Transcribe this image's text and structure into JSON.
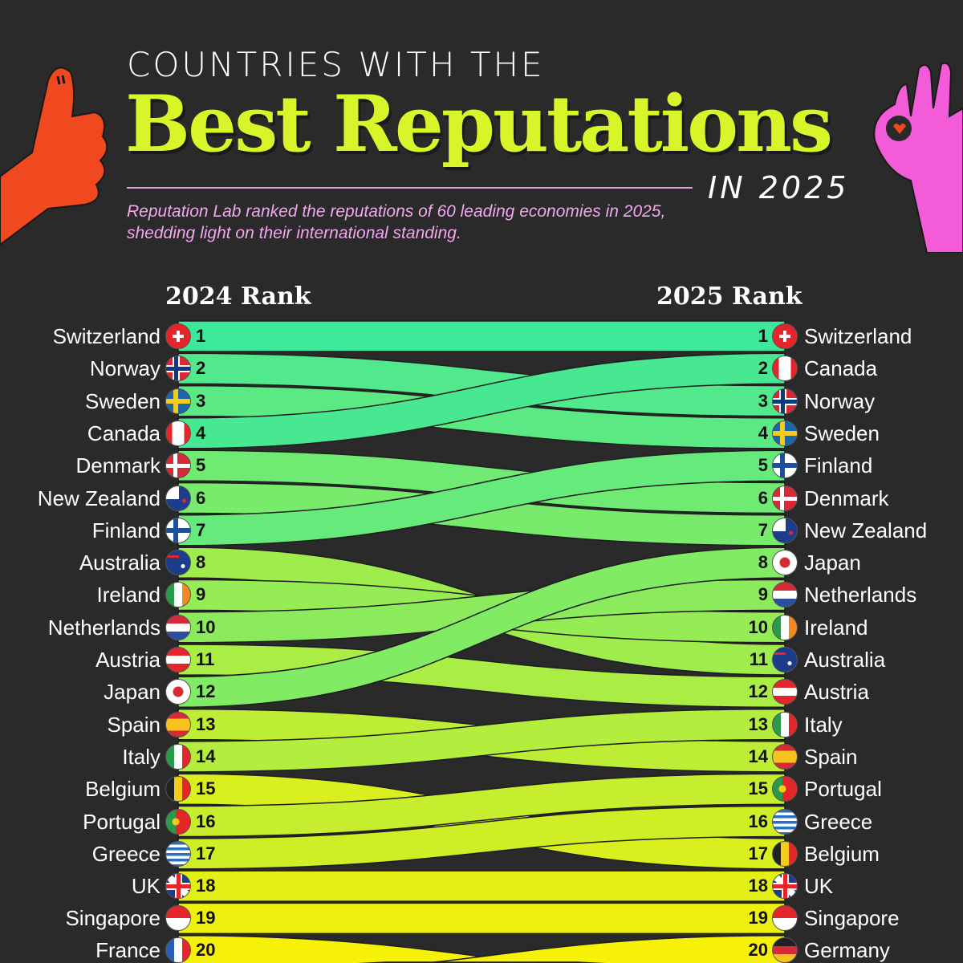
{
  "header": {
    "title_top": "COUNTRIES WITH THE",
    "title_main": "Best Reputations",
    "title_year": "IN 2025",
    "subtitle": "Reputation Lab ranked the reputations of 60 leading economies in 2025, shedding light on their international standing."
  },
  "chart_data": {
    "type": "bump",
    "left_label": "2024 Rank",
    "right_label": "2025 Rank",
    "rank_2024": [
      "Switzerland",
      "Norway",
      "Sweden",
      "Canada",
      "Denmark",
      "New Zealand",
      "Finland",
      "Australia",
      "Ireland",
      "Netherlands",
      "Austria",
      "Japan",
      "Spain",
      "Italy",
      "Belgium",
      "Portugal",
      "Greece",
      "UK",
      "Singapore",
      "France"
    ],
    "rank_2025": [
      "Switzerland",
      "Canada",
      "Norway",
      "Sweden",
      "Finland",
      "Denmark",
      "New Zealand",
      "Japan",
      "Netherlands",
      "Ireland",
      "Australia",
      "Austria",
      "Italy",
      "Spain",
      "Portugal",
      "Greece",
      "Belgium",
      "UK",
      "Singapore",
      "Germany"
    ],
    "color_scale": [
      "#3ee89a",
      "#f7f007"
    ]
  },
  "flags": {
    "Switzerland": "swiss-flag-icon",
    "Norway": "norway-flag-icon",
    "Sweden": "sweden-flag-icon",
    "Canada": "canada-flag-icon",
    "Denmark": "denmark-flag-icon",
    "New Zealand": "new-zealand-flag-icon",
    "Finland": "finland-flag-icon",
    "Australia": "australia-flag-icon",
    "Ireland": "ireland-flag-icon",
    "Netherlands": "netherlands-flag-icon",
    "Austria": "austria-flag-icon",
    "Japan": "japan-flag-icon",
    "Spain": "spain-flag-icon",
    "Italy": "italy-flag-icon",
    "Belgium": "belgium-flag-icon",
    "Portugal": "portugal-flag-icon",
    "Greece": "greece-flag-icon",
    "UK": "uk-flag-icon",
    "Singapore": "singapore-flag-icon",
    "France": "france-flag-icon",
    "Germany": "germany-flag-icon"
  },
  "colors": {
    "background": "#2a2a2a",
    "title": "#d8f52a",
    "subtitle": "#f2a6ee",
    "thumb_hand": "#f0481f",
    "ok_hand": "#f45bd8"
  }
}
